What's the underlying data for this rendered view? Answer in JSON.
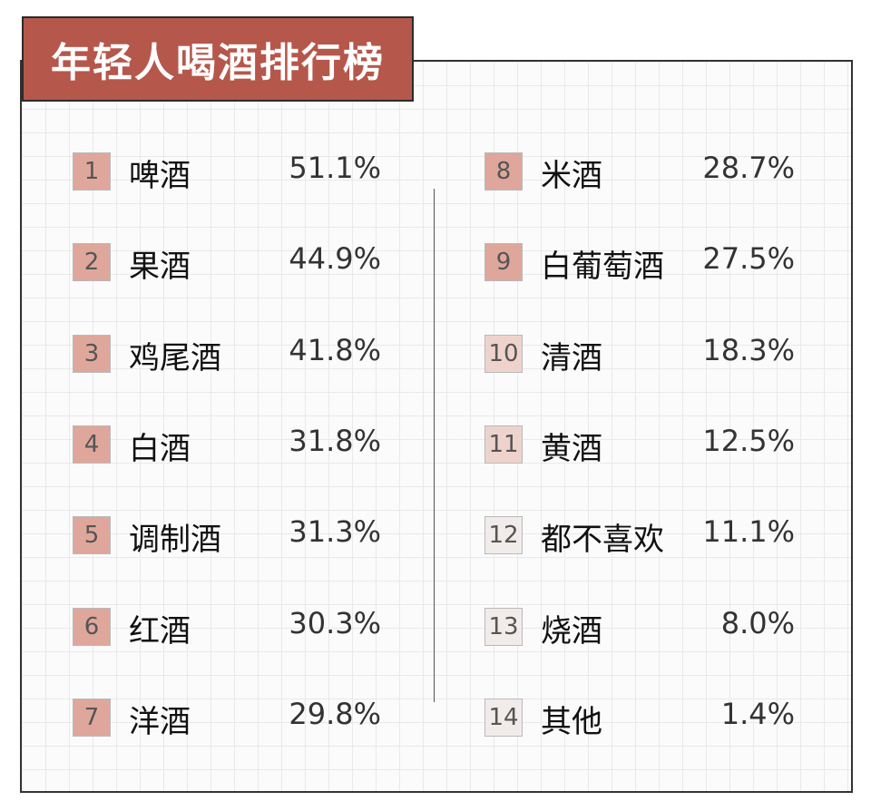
{
  "title": "年轻人喝酒排行榜",
  "colors": {
    "title_bg": "#b6574b",
    "rank_high": "#dfa79b",
    "rank_mid": "#eed3cc",
    "rank_low": "#f1ecea"
  },
  "chart_data": {
    "type": "table",
    "title": "年轻人喝酒排行榜",
    "rows": [
      {
        "rank": "1",
        "name": "啤酒",
        "value": 51.1,
        "label": "51.1%"
      },
      {
        "rank": "2",
        "name": "果酒",
        "value": 44.9,
        "label": "44.9%"
      },
      {
        "rank": "3",
        "name": "鸡尾酒",
        "value": 41.8,
        "label": "41.8%"
      },
      {
        "rank": "4",
        "name": "白酒",
        "value": 31.8,
        "label": "31.8%"
      },
      {
        "rank": "5",
        "name": "调制酒",
        "value": 31.3,
        "label": "31.3%"
      },
      {
        "rank": "6",
        "name": "红酒",
        "value": 30.3,
        "label": "30.3%"
      },
      {
        "rank": "7",
        "name": "洋酒",
        "value": 29.8,
        "label": "29.8%"
      },
      {
        "rank": "8",
        "name": "米酒",
        "value": 28.7,
        "label": "28.7%"
      },
      {
        "rank": "9",
        "name": "白葡萄酒",
        "value": 27.5,
        "label": "27.5%"
      },
      {
        "rank": "10",
        "name": "清酒",
        "value": 18.3,
        "label": "18.3%"
      },
      {
        "rank": "11",
        "name": "黄酒",
        "value": 12.5,
        "label": "12.5%"
      },
      {
        "rank": "12",
        "name": "都不喜欢",
        "value": 11.1,
        "label": "11.1%"
      },
      {
        "rank": "13",
        "name": "烧酒",
        "value": 8.0,
        "label": "8.0%"
      },
      {
        "rank": "14",
        "name": "其他",
        "value": 1.4,
        "label": "1.4%"
      }
    ]
  }
}
